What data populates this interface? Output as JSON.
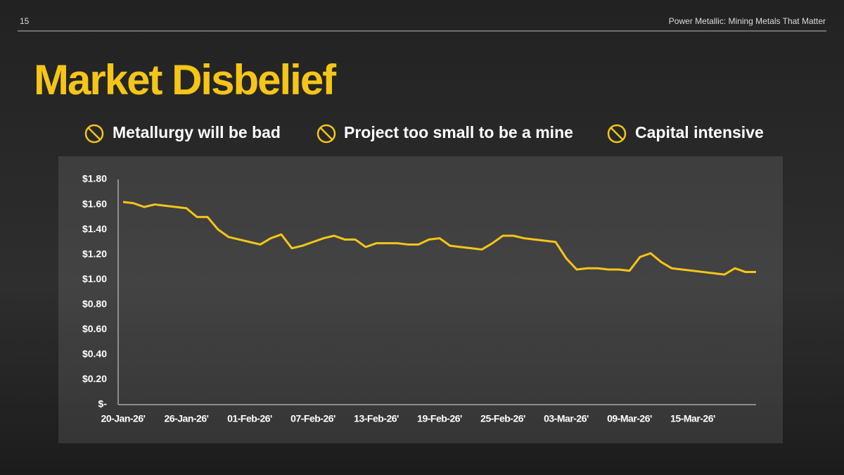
{
  "slide": {
    "page_number": "15",
    "header": "Power Metallic: Mining Metals That Matter",
    "title": "Market Disbelief",
    "points": [
      "Metallurgy will be bad",
      "Project too small to be a mine",
      "Capital intensive"
    ]
  },
  "chart_data": {
    "type": "line",
    "categories": [
      "20-Jan-26'",
      null,
      null,
      null,
      null,
      null,
      "26-Jan-26'",
      null,
      null,
      null,
      null,
      null,
      "01-Feb-26'",
      null,
      null,
      null,
      null,
      null,
      "07-Feb-26'",
      null,
      null,
      null,
      null,
      null,
      "13-Feb-26'",
      null,
      null,
      null,
      null,
      null,
      "19-Feb-26'",
      null,
      null,
      null,
      null,
      null,
      "25-Feb-26'",
      null,
      null,
      null,
      null,
      null,
      "03-Mar-26'",
      null,
      null,
      null,
      null,
      null,
      "09-Mar-26'",
      null,
      null,
      null,
      null,
      null,
      "15-Mar-26'",
      null,
      null,
      null,
      null,
      null,
      null
    ],
    "values": [
      1.62,
      1.61,
      1.58,
      1.6,
      1.59,
      1.58,
      1.57,
      1.5,
      1.5,
      1.4,
      1.34,
      1.32,
      1.3,
      1.28,
      1.33,
      1.36,
      1.25,
      1.27,
      1.3,
      1.33,
      1.35,
      1.32,
      1.32,
      1.26,
      1.29,
      1.29,
      1.29,
      1.28,
      1.28,
      1.32,
      1.33,
      1.27,
      1.26,
      1.25,
      1.24,
      1.29,
      1.35,
      1.35,
      1.33,
      1.32,
      1.31,
      1.3,
      1.17,
      1.08,
      1.09,
      1.09,
      1.08,
      1.08,
      1.07,
      1.18,
      1.21,
      1.14,
      1.09,
      1.08,
      1.07,
      1.06,
      1.05,
      1.04,
      1.09,
      1.06,
      1.06
    ],
    "color": "#f5c518",
    "ylim": [
      0,
      1.8
    ],
    "yticks": [
      {
        "value": 0,
        "label": "$-"
      },
      {
        "value": 0.2,
        "label": "$0.20"
      },
      {
        "value": 0.4,
        "label": "$0.40"
      },
      {
        "value": 0.6,
        "label": "$0.60"
      },
      {
        "value": 0.8,
        "label": "$0.80"
      },
      {
        "value": 1.0,
        "label": "$1.00"
      },
      {
        "value": 1.2,
        "label": "$1.20"
      },
      {
        "value": 1.4,
        "label": "$1.40"
      },
      {
        "value": 1.6,
        "label": "$1.60"
      },
      {
        "value": 1.8,
        "label": "$1.80"
      }
    ],
    "grid": false
  }
}
